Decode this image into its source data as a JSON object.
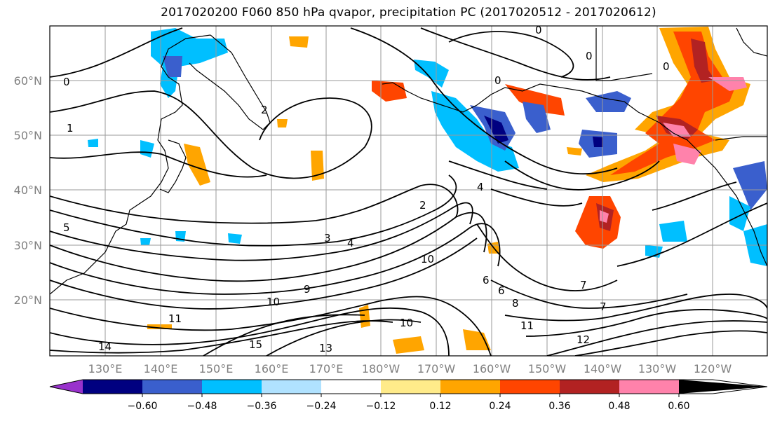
{
  "title": "2017020200 F060 850 hPa qvapor, precipitation PC (2017020512 - 2017020612)",
  "lat_labels": [
    "60°N",
    "50°N",
    "40°N",
    "30°N",
    "20°N"
  ],
  "lon_labels": [
    "130°E",
    "140°E",
    "150°E",
    "160°E",
    "170°E",
    "180°W",
    "170°W",
    "160°W",
    "150°W",
    "140°W",
    "130°W",
    "120°W"
  ],
  "contour_labels": [
    "0",
    "0",
    "0",
    "0",
    "0",
    "1",
    "2",
    "2",
    "3",
    "4",
    "4",
    "5",
    "6",
    "6",
    "7",
    "7",
    "8",
    "9",
    "10",
    "10",
    "10",
    "11",
    "11",
    "12",
    "13",
    "14",
    "15"
  ],
  "colorbar": {
    "colors": [
      "#9932cc",
      "#000080",
      "#3a5fcd",
      "#00bfff",
      "#b0e2ff",
      "#ffffff",
      "#ffeb8a",
      "#ffa500",
      "#ff4500",
      "#b22222",
      "#ff82ab"
    ],
    "tick_labels": [
      "−0.60",
      "−0.48",
      "−0.36",
      "−0.24",
      "−0.12",
      "0.12",
      "0.24",
      "0.36",
      "0.48",
      "0.60"
    ]
  }
}
